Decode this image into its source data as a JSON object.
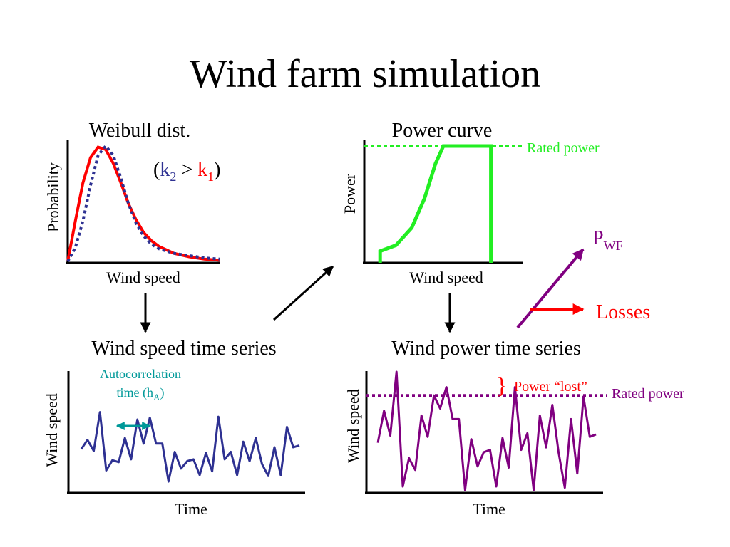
{
  "title": "Wind farm simulation",
  "colors": {
    "red": "#ff0000",
    "blue": "#2e3192",
    "green": "#22ee22",
    "purple": "#800080",
    "teal": "#009999",
    "black": "#000000"
  },
  "weibull": {
    "title": "Weibull dist.",
    "ylabel": "Probability",
    "xlabel": "Wind speed",
    "note_open": "(",
    "note_k2": "k",
    "note_k2_sub": "2",
    "note_gt": " > ",
    "note_k1": "k",
    "note_k1_sub": "1",
    "note_close": ")"
  },
  "power_curve": {
    "title": "Power curve",
    "ylabel": "Power",
    "xlabel": "Wind speed",
    "rated_label": "Rated power"
  },
  "wind_series": {
    "title": "Wind speed time series",
    "ylabel": "Wind speed",
    "xlabel": "Time",
    "autocorr_line1": "Autocorrelation",
    "autocorr_line2_pre": "time (h",
    "autocorr_line2_sub": "A",
    "autocorr_line2_post": ")"
  },
  "power_series": {
    "title": "Wind power time series",
    "ylabel": "Wind speed",
    "xlabel": "Time",
    "brace": "}",
    "lost_label": "Power “lost”",
    "rated_label": "Rated power"
  },
  "vector": {
    "pwf_main": "P",
    "pwf_sub": "WF",
    "losses": "Losses"
  },
  "chart_data": [
    {
      "type": "line",
      "name": "weibull",
      "series": [
        {
          "name": "k1",
          "style": "solid",
          "color": "#ff0000",
          "x": [
            0,
            0.05,
            0.1,
            0.15,
            0.2,
            0.25,
            0.3,
            0.35,
            0.4,
            0.45,
            0.5,
            0.55,
            0.6,
            0.7,
            0.8,
            0.9,
            1.0
          ],
          "y": [
            0,
            0.35,
            0.68,
            0.9,
            0.99,
            0.97,
            0.85,
            0.68,
            0.5,
            0.36,
            0.25,
            0.18,
            0.13,
            0.07,
            0.04,
            0.02,
            0.01
          ]
        },
        {
          "name": "k2",
          "style": "dotted",
          "color": "#2e3192",
          "x": [
            0,
            0.05,
            0.1,
            0.15,
            0.2,
            0.25,
            0.3,
            0.35,
            0.4,
            0.45,
            0.5,
            0.55,
            0.6,
            0.7,
            0.8,
            0.9,
            1.0
          ],
          "y": [
            0,
            0.12,
            0.35,
            0.66,
            0.92,
            1.0,
            0.92,
            0.72,
            0.5,
            0.33,
            0.22,
            0.15,
            0.11,
            0.07,
            0.05,
            0.03,
            0.02
          ]
        }
      ]
    },
    {
      "type": "line",
      "name": "power_curve",
      "series": [
        {
          "name": "power",
          "style": "solid",
          "color": "#22ee22",
          "x": [
            0.1,
            0.1,
            0.2,
            0.3,
            0.38,
            0.45,
            0.5,
            0.8,
            0.8
          ],
          "y": [
            0.0,
            0.1,
            0.15,
            0.3,
            0.55,
            0.85,
            1.0,
            1.0,
            0.0
          ]
        },
        {
          "name": "rated",
          "style": "dotted",
          "color": "#22ee22",
          "x": [
            0.0,
            1.0
          ],
          "y": [
            1.0,
            1.0
          ]
        }
      ]
    },
    {
      "type": "line",
      "name": "wind_speed_series",
      "series": [
        {
          "name": "wind",
          "style": "solid",
          "color": "#2e3192",
          "y": [
            0.38,
            0.48,
            0.36,
            0.78,
            0.15,
            0.26,
            0.24,
            0.5,
            0.27,
            0.7,
            0.44,
            0.72,
            0.44,
            0.44,
            0.03,
            0.35,
            0.17,
            0.25,
            0.27,
            0.1,
            0.34,
            0.14,
            0.73,
            0.27,
            0.35,
            0.1,
            0.46,
            0.25,
            0.5,
            0.22,
            0.09,
            0.4,
            0.1,
            0.62,
            0.4,
            0.42
          ]
        }
      ]
    },
    {
      "type": "line",
      "name": "wind_power_series",
      "series": [
        {
          "name": "power",
          "style": "solid",
          "color": "#800080",
          "y": [
            0.4,
            0.67,
            0.46,
            1.0,
            0.03,
            0.27,
            0.17,
            0.63,
            0.45,
            0.8,
            0.69,
            0.87,
            0.6,
            0.6,
            0.0,
            0.43,
            0.2,
            0.32,
            0.34,
            0.03,
            0.44,
            0.19,
            0.87,
            0.34,
            0.48,
            0.0,
            0.63,
            0.36,
            0.72,
            0.32,
            0.02,
            0.6,
            0.14,
            0.79,
            0.45,
            0.47
          ]
        },
        {
          "name": "rated",
          "style": "dotted",
          "color": "#800080",
          "x": [
            0.0,
            1.0
          ],
          "y": [
            0.8,
            0.8
          ]
        }
      ]
    }
  ]
}
